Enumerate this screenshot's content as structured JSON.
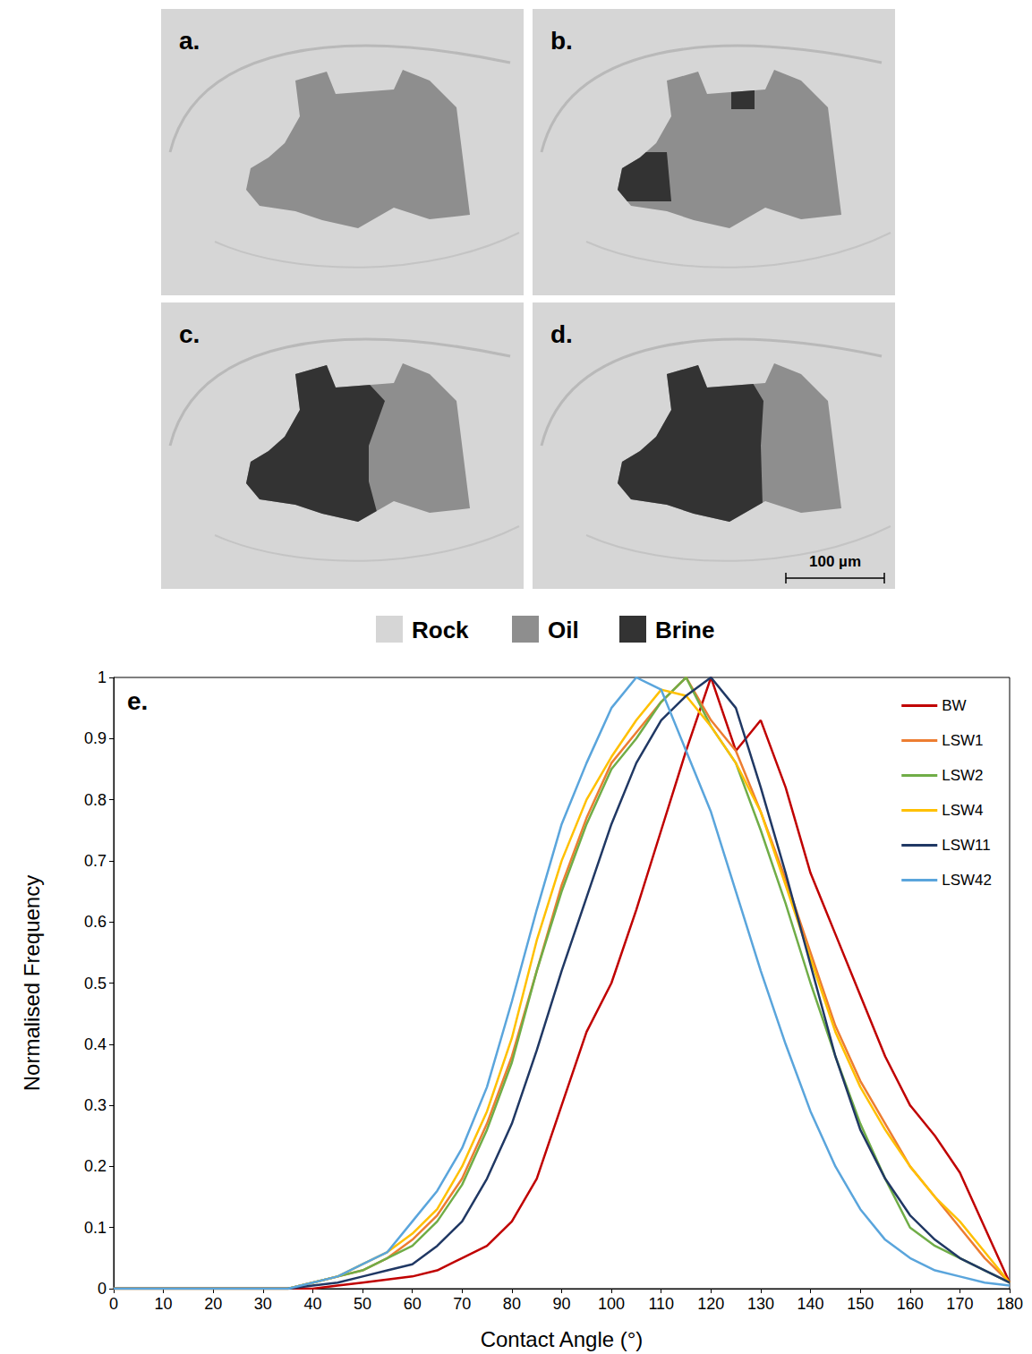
{
  "panels": [
    {
      "label": "a."
    },
    {
      "label": "b."
    },
    {
      "label": "c."
    },
    {
      "label": "d."
    }
  ],
  "scale_bar": "100 µm",
  "phase_legend": [
    {
      "label": "Rock",
      "color": "#d6d6d6"
    },
    {
      "label": "Oil",
      "color": "#8e8e8e"
    },
    {
      "label": "Brine",
      "color": "#333333"
    }
  ],
  "chart_data": {
    "type": "line",
    "panel_label": "e.",
    "xlabel": "Contact Angle (°)",
    "ylabel": "Normalised Frequency",
    "x": [
      0,
      5,
      10,
      15,
      20,
      25,
      30,
      35,
      40,
      45,
      50,
      55,
      60,
      65,
      70,
      75,
      80,
      85,
      90,
      95,
      100,
      105,
      110,
      115,
      120,
      125,
      130,
      135,
      140,
      145,
      150,
      155,
      160,
      165,
      170,
      175,
      180
    ],
    "series": [
      {
        "name": "BW",
        "color": "#c00000",
        "values": [
          0,
          0,
          0,
          0,
          0,
          0,
          0,
          0,
          0,
          0.005,
          0.01,
          0.015,
          0.02,
          0.03,
          0.05,
          0.07,
          0.11,
          0.18,
          0.3,
          0.42,
          0.5,
          0.62,
          0.75,
          0.88,
          1.0,
          0.88,
          0.93,
          0.82,
          0.68,
          0.58,
          0.48,
          0.38,
          0.3,
          0.25,
          0.19,
          0.1,
          0.01
        ]
      },
      {
        "name": "LSW1",
        "color": "#ed7d31",
        "values": [
          0,
          0,
          0,
          0,
          0,
          0,
          0,
          0,
          0.01,
          0.02,
          0.03,
          0.05,
          0.08,
          0.12,
          0.18,
          0.27,
          0.38,
          0.52,
          0.66,
          0.77,
          0.86,
          0.91,
          0.96,
          1.0,
          0.93,
          0.88,
          0.78,
          0.67,
          0.55,
          0.43,
          0.34,
          0.27,
          0.2,
          0.15,
          0.1,
          0.05,
          0.01
        ]
      },
      {
        "name": "LSW2",
        "color": "#70ad47",
        "values": [
          0,
          0,
          0,
          0,
          0,
          0,
          0,
          0,
          0.01,
          0.02,
          0.03,
          0.05,
          0.07,
          0.11,
          0.17,
          0.26,
          0.37,
          0.52,
          0.65,
          0.76,
          0.85,
          0.9,
          0.96,
          1.0,
          0.92,
          0.86,
          0.75,
          0.63,
          0.5,
          0.38,
          0.27,
          0.18,
          0.1,
          0.07,
          0.05,
          0.03,
          0.01
        ]
      },
      {
        "name": "LSW4",
        "color": "#ffc000",
        "values": [
          0,
          0,
          0,
          0,
          0,
          0,
          0,
          0,
          0.01,
          0.02,
          0.04,
          0.06,
          0.09,
          0.13,
          0.2,
          0.29,
          0.41,
          0.57,
          0.7,
          0.8,
          0.87,
          0.93,
          0.98,
          0.97,
          0.92,
          0.86,
          0.78,
          0.66,
          0.54,
          0.42,
          0.33,
          0.26,
          0.2,
          0.15,
          0.11,
          0.06,
          0.01
        ]
      },
      {
        "name": "LSW11",
        "color": "#203864",
        "values": [
          0,
          0,
          0,
          0,
          0,
          0,
          0,
          0,
          0.005,
          0.01,
          0.02,
          0.03,
          0.04,
          0.07,
          0.11,
          0.18,
          0.27,
          0.39,
          0.52,
          0.64,
          0.76,
          0.86,
          0.93,
          0.97,
          1.0,
          0.95,
          0.82,
          0.68,
          0.53,
          0.38,
          0.26,
          0.18,
          0.12,
          0.08,
          0.05,
          0.03,
          0.01
        ]
      },
      {
        "name": "LSW42",
        "color": "#5aa5dc",
        "values": [
          0,
          0,
          0,
          0,
          0,
          0,
          0,
          0,
          0.01,
          0.02,
          0.04,
          0.06,
          0.11,
          0.16,
          0.23,
          0.33,
          0.47,
          0.62,
          0.76,
          0.86,
          0.95,
          1.0,
          0.98,
          0.88,
          0.78,
          0.65,
          0.52,
          0.4,
          0.29,
          0.2,
          0.13,
          0.08,
          0.05,
          0.03,
          0.02,
          0.01,
          0.005
        ]
      }
    ],
    "xlim": [
      0,
      180
    ],
    "xticks": [
      0,
      10,
      20,
      30,
      40,
      50,
      60,
      70,
      80,
      90,
      100,
      110,
      120,
      130,
      140,
      150,
      160,
      170,
      180
    ],
    "ylim": [
      0,
      1
    ],
    "yticks": [
      0,
      0.1,
      0.2,
      0.3,
      0.4,
      0.5,
      0.6,
      0.7,
      0.8,
      0.9,
      1
    ],
    "grid": false,
    "legend": "top-right"
  }
}
